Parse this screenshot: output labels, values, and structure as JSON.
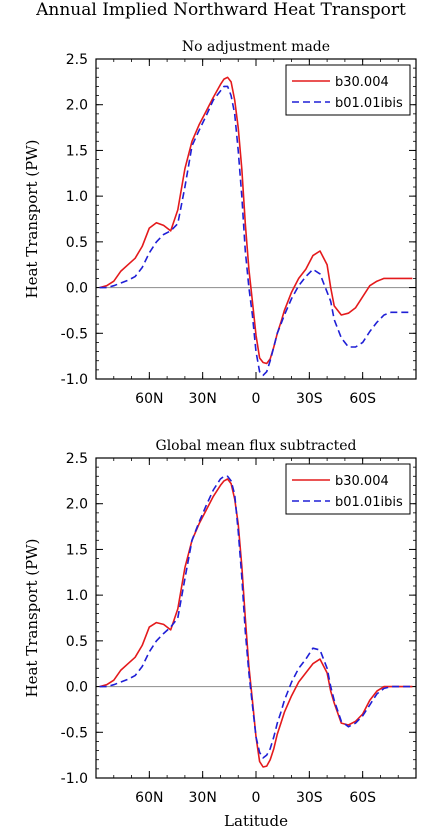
{
  "figure_title": "Annual Implied Northward Heat Transport",
  "colors": {
    "b30": "#e41a1c",
    "b01": "#1f1fd6",
    "zero_line": "#999999",
    "axis": "#000000"
  },
  "chart_data": [
    {
      "type": "line",
      "title": "No adjustment made",
      "xlabel": "",
      "ylabel": "Heat Transport (PW)",
      "xlim": [
        90,
        -90
      ],
      "ylim": [
        -1.0,
        2.5
      ],
      "x_ticks": [
        {
          "value": 60,
          "label": "60N"
        },
        {
          "value": 30,
          "label": "30N"
        },
        {
          "value": 0,
          "label": "0"
        },
        {
          "value": -30,
          "label": "30S"
        },
        {
          "value": -60,
          "label": "60S"
        }
      ],
      "y_ticks": [
        {
          "value": 2.5,
          "label": "2.5"
        },
        {
          "value": 2.0,
          "label": "2.0"
        },
        {
          "value": 1.5,
          "label": "1.5"
        },
        {
          "value": 1.0,
          "label": "1.0"
        },
        {
          "value": 0.5,
          "label": "0.5"
        },
        {
          "value": 0.0,
          "label": "0.0"
        },
        {
          "value": -0.5,
          "label": "-0.5"
        },
        {
          "value": -1.0,
          "label": "-1.0"
        }
      ],
      "legend": "top-right",
      "series": [
        {
          "name": "b30.004",
          "color": "#e41a1c",
          "dash": "solid",
          "x": [
            88,
            84,
            80,
            76,
            72,
            68,
            64,
            60,
            56,
            52,
            48,
            44,
            40,
            36,
            32,
            28,
            24,
            20,
            18,
            16,
            14,
            12,
            10,
            8,
            6,
            4,
            2,
            0,
            -2,
            -4,
            -6,
            -8,
            -10,
            -12,
            -14,
            -16,
            -20,
            -24,
            -28,
            -32,
            -36,
            -40,
            -42,
            -44,
            -48,
            -52,
            -56,
            -60,
            -64,
            -68,
            -72,
            -76,
            -80,
            -84,
            -88
          ],
          "y": [
            0.0,
            0.02,
            0.07,
            0.18,
            0.25,
            0.32,
            0.45,
            0.65,
            0.71,
            0.68,
            0.62,
            0.85,
            1.3,
            1.6,
            1.78,
            1.93,
            2.08,
            2.22,
            2.28,
            2.3,
            2.25,
            2.05,
            1.75,
            1.3,
            0.7,
            0.2,
            -0.15,
            -0.52,
            -0.77,
            -0.82,
            -0.83,
            -0.78,
            -0.65,
            -0.5,
            -0.38,
            -0.25,
            -0.05,
            0.1,
            0.2,
            0.35,
            0.4,
            0.25,
            0.0,
            -0.2,
            -0.3,
            -0.28,
            -0.22,
            -0.1,
            0.02,
            0.07,
            0.1,
            0.1,
            0.1,
            0.1,
            0.1
          ]
        },
        {
          "name": "b01.01ibis",
          "color": "#1f1fd6",
          "dash": "dashed",
          "x": [
            88,
            84,
            80,
            76,
            72,
            68,
            64,
            60,
            56,
            52,
            48,
            44,
            40,
            36,
            32,
            28,
            24,
            20,
            18,
            16,
            14,
            12,
            10,
            8,
            6,
            4,
            2,
            0,
            -2,
            -4,
            -6,
            -8,
            -10,
            -12,
            -14,
            -16,
            -20,
            -24,
            -28,
            -32,
            -36,
            -40,
            -42,
            -44,
            -48,
            -52,
            -56,
            -60,
            -64,
            -68,
            -72,
            -76,
            -80,
            -84,
            -88
          ],
          "y": [
            0.0,
            0.0,
            0.02,
            0.05,
            0.08,
            0.12,
            0.22,
            0.38,
            0.5,
            0.58,
            0.62,
            0.7,
            1.1,
            1.55,
            1.72,
            1.88,
            2.05,
            2.15,
            2.2,
            2.2,
            2.1,
            1.9,
            1.5,
            1.0,
            0.4,
            0.0,
            -0.3,
            -0.7,
            -0.92,
            -0.96,
            -0.92,
            -0.8,
            -0.65,
            -0.5,
            -0.4,
            -0.3,
            -0.12,
            0.02,
            0.12,
            0.2,
            0.15,
            -0.05,
            -0.15,
            -0.35,
            -0.55,
            -0.65,
            -0.65,
            -0.6,
            -0.48,
            -0.38,
            -0.3,
            -0.27,
            -0.27,
            -0.27,
            -0.27
          ]
        }
      ]
    },
    {
      "type": "line",
      "title": "Global mean flux subtracted",
      "xlabel": "Latitude",
      "ylabel": "Heat Transport (PW)",
      "xlim": [
        90,
        -90
      ],
      "ylim": [
        -1.0,
        2.5
      ],
      "x_ticks": [
        {
          "value": 60,
          "label": "60N"
        },
        {
          "value": 30,
          "label": "30N"
        },
        {
          "value": 0,
          "label": "0"
        },
        {
          "value": -30,
          "label": "30S"
        },
        {
          "value": -60,
          "label": "60S"
        }
      ],
      "y_ticks": [
        {
          "value": 2.5,
          "label": "2.5"
        },
        {
          "value": 2.0,
          "label": "2.0"
        },
        {
          "value": 1.5,
          "label": "1.5"
        },
        {
          "value": 1.0,
          "label": "1.0"
        },
        {
          "value": 0.5,
          "label": "0.5"
        },
        {
          "value": 0.0,
          "label": "0.0"
        },
        {
          "value": -0.5,
          "label": "-0.5"
        },
        {
          "value": -1.0,
          "label": "-1.0"
        }
      ],
      "legend": "top-right",
      "series": [
        {
          "name": "b30.004",
          "color": "#e41a1c",
          "dash": "solid",
          "x": [
            88,
            84,
            80,
            76,
            72,
            68,
            64,
            60,
            56,
            52,
            48,
            44,
            40,
            36,
            32,
            28,
            24,
            20,
            18,
            16,
            14,
            12,
            10,
            8,
            6,
            4,
            2,
            0,
            -2,
            -4,
            -6,
            -8,
            -10,
            -12,
            -14,
            -16,
            -20,
            -24,
            -28,
            -32,
            -36,
            -40,
            -42,
            -44,
            -48,
            -52,
            -56,
            -60,
            -64,
            -68,
            -72,
            -76,
            -80,
            -84,
            -88
          ],
          "y": [
            0.0,
            0.02,
            0.07,
            0.18,
            0.25,
            0.32,
            0.45,
            0.65,
            0.7,
            0.68,
            0.62,
            0.85,
            1.3,
            1.6,
            1.78,
            1.93,
            2.08,
            2.2,
            2.25,
            2.27,
            2.22,
            2.05,
            1.78,
            1.32,
            0.75,
            0.22,
            -0.15,
            -0.55,
            -0.82,
            -0.88,
            -0.87,
            -0.8,
            -0.68,
            -0.52,
            -0.4,
            -0.28,
            -0.1,
            0.05,
            0.15,
            0.25,
            0.3,
            0.15,
            -0.05,
            -0.18,
            -0.4,
            -0.42,
            -0.38,
            -0.3,
            -0.15,
            -0.05,
            0.0,
            0.0,
            0.0,
            0.0,
            0.0
          ]
        },
        {
          "name": "b01.01ibis",
          "color": "#1f1fd6",
          "dash": "dashed",
          "x": [
            88,
            84,
            80,
            76,
            72,
            68,
            64,
            60,
            56,
            52,
            48,
            44,
            40,
            36,
            32,
            28,
            24,
            20,
            18,
            16,
            14,
            12,
            10,
            8,
            6,
            4,
            2,
            0,
            -2,
            -4,
            -6,
            -8,
            -10,
            -12,
            -14,
            -16,
            -20,
            -24,
            -28,
            -32,
            -36,
            -40,
            -42,
            -44,
            -48,
            -52,
            -56,
            -60,
            -64,
            -68,
            -72,
            -76,
            -80,
            -84,
            -88
          ],
          "y": [
            0.0,
            0.0,
            0.02,
            0.05,
            0.08,
            0.12,
            0.22,
            0.38,
            0.5,
            0.58,
            0.65,
            0.75,
            1.18,
            1.6,
            1.8,
            1.98,
            2.15,
            2.27,
            2.3,
            2.3,
            2.25,
            2.1,
            1.7,
            1.2,
            0.6,
            0.15,
            -0.2,
            -0.55,
            -0.72,
            -0.78,
            -0.75,
            -0.68,
            -0.55,
            -0.4,
            -0.28,
            -0.15,
            0.05,
            0.2,
            0.3,
            0.42,
            0.4,
            0.2,
            0.0,
            -0.15,
            -0.38,
            -0.44,
            -0.4,
            -0.32,
            -0.2,
            -0.08,
            -0.02,
            0.0,
            0.0,
            0.0,
            0.0
          ]
        }
      ]
    }
  ]
}
